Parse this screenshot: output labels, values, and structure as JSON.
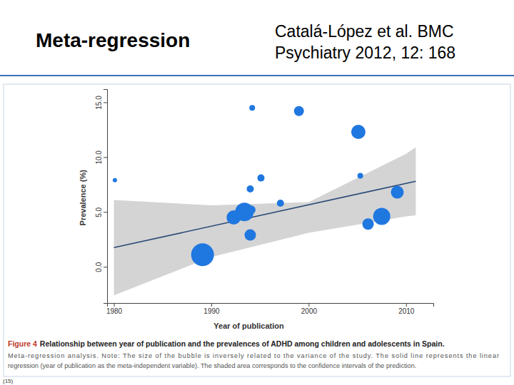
{
  "slide": {
    "title": "Meta-regression",
    "citation": [
      "Catalá-López et al. BMC",
      "Psychiatry 2012, 12: 168"
    ],
    "footer": "(15)"
  },
  "chart_data": {
    "type": "scatter",
    "x_label": "Year of publication",
    "y_label": "Prevalence (%)",
    "caption_label": "Figure 4",
    "caption": "Relationship between year of publication and the prevalences of ADHD among children and adolescents in Spain.",
    "note": [
      "Meta-regression analysis. Note: The size of the bubble is inversely related to the variance of the study. The solid line represents the linear",
      "regression (year of publication as the meta-independent variable). The shaded area corresponds to the confidence intervals of the prediction."
    ],
    "xlim": [
      1979.3,
      2012.8
    ],
    "ylim": [
      -3.3,
      16.2
    ],
    "xticks": [
      1980,
      1990,
      2000,
      2010
    ],
    "yticks": [
      {
        "value": 0,
        "label": "0.0"
      },
      {
        "value": 5,
        "label": "5.0"
      },
      {
        "value": 10,
        "label": "10.0"
      },
      {
        "value": 15,
        "label": "15.0"
      }
    ],
    "grid": false,
    "series": [
      {
        "type": "scatter",
        "color": "#1f77e0",
        "marker": "circle",
        "x": [
          1980.1,
          1989.1,
          1992.3,
          1993.4,
          1994.1,
          1994.0,
          1994.0,
          1994.2,
          1995.1,
          1997.1,
          1999.0,
          2005.1,
          2005.3,
          2006.1,
          2007.5,
          2009.1
        ],
        "values": [
          7.9,
          1.1,
          4.5,
          5.0,
          5.2,
          2.9,
          7.1,
          14.5,
          8.1,
          5.8,
          14.2,
          12.3,
          8.3,
          3.9,
          4.6,
          6.8
        ],
        "sizes": [
          3,
          16,
          10,
          13,
          6,
          8,
          5,
          4,
          5,
          5,
          7,
          10,
          4,
          8,
          12,
          9
        ]
      },
      {
        "type": "line",
        "color": "#2b4a78",
        "line_style": "solid",
        "x": [
          1980,
          2011
        ],
        "values": [
          1.75,
          7.8
        ]
      }
    ],
    "band": {
      "color": "#d4d4d4",
      "x": [
        1980,
        1990,
        2000,
        2010,
        2011
      ],
      "lower": [
        -2.6,
        0.9,
        3.1,
        4.6,
        4.7
      ],
      "upper": [
        6.1,
        5.6,
        5.9,
        10.3,
        10.9
      ]
    }
  }
}
